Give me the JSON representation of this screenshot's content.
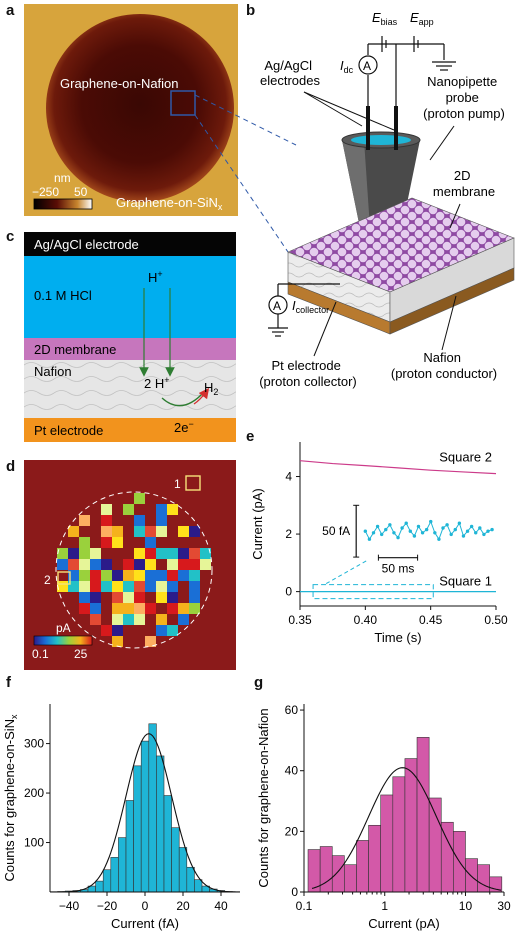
{
  "panels": {
    "a": {
      "letter": "a",
      "label_top": "Graphene-on-Nafion",
      "label_bottom": "Graphene-on-SiN",
      "label_bottom_sub": "x",
      "colorbar_unit": "nm",
      "colorbar_min": "−250",
      "colorbar_max": "50",
      "colors": {
        "background": "#d7a43c",
        "disk": "#4b0b05",
        "disk_edge": "#7a2a10",
        "box": "#2f59a8"
      }
    },
    "b": {
      "letter": "b",
      "e_bias": "E",
      "e_bias_sub": "bias",
      "e_app": "E",
      "e_app_sub": "app",
      "i_dc": "I",
      "i_dc_sub": "dc",
      "ammeter": "A",
      "electrodes_label": [
        "Ag/AgCl",
        "electrodes"
      ],
      "probe_label": [
        "Nanopipette",
        "probe",
        "(proton pump)"
      ],
      "membrane_label": [
        "2D",
        "membrane"
      ],
      "collector_current": "I",
      "collector_current_sub": "collector",
      "pt_label": [
        "Pt electrode",
        "(proton collector)"
      ],
      "nafion_label": [
        "Nafion",
        "(proton conductor)"
      ]
    },
    "c": {
      "letter": "c",
      "layers": [
        {
          "label": "Ag/AgCl electrode",
          "color": "#050505",
          "text_color": "#ffffff"
        },
        {
          "label": "0.1 M HCl",
          "color": "#00aeef",
          "text_color": "#111111"
        },
        {
          "label": "2D membrane",
          "color": "#c676bd",
          "text_color": "#111111"
        },
        {
          "label": "Nafion",
          "color": "#e6e6e6",
          "text_color": "#111111"
        },
        {
          "label": "Pt electrode",
          "color": "#f2931d",
          "text_color": "#111111"
        }
      ],
      "proton": "H",
      "proton_sup": "+",
      "two_protons": "2 H",
      "two_protons_sup": "+",
      "hydrogen": "H",
      "hydrogen_sub": "2",
      "electrons": "2e",
      "electrons_sup": "−"
    },
    "d": {
      "letter": "d",
      "square1": "1",
      "square2": "2",
      "colorbar_unit": "pA",
      "colorbar_min": "0.1",
      "colorbar_max": "25",
      "background": "#8b1a1a"
    },
    "e": {
      "letter": "e",
      "ylabel": "Current (pA)",
      "xlabel": "Time (s)",
      "square2_label": "Square 2",
      "square1_label": "Square 1",
      "scale_y": "50 fA",
      "scale_x": "50 ms"
    },
    "f": {
      "letter": "f"
    },
    "g": {
      "letter": "g"
    }
  },
  "chart_data": [
    {
      "id": "e",
      "type": "line",
      "xlabel": "Time (s)",
      "ylabel": "Current (pA)",
      "xlim": [
        0.35,
        0.5
      ],
      "ylim": [
        -0.5,
        5.2
      ],
      "xticks": [
        "0.35",
        "0.40",
        "0.45",
        "0.50"
      ],
      "yticks": [
        "0",
        "2",
        "4"
      ],
      "series": [
        {
          "name": "Square 2",
          "color": "#cc3b8a",
          "x": [
            0.35,
            0.375,
            0.4,
            0.425,
            0.45,
            0.475,
            0.5
          ],
          "y": [
            4.55,
            4.45,
            4.38,
            4.3,
            4.22,
            4.16,
            4.1
          ]
        },
        {
          "name": "Square 1",
          "color": "#1fb5d6",
          "x": [
            0.35,
            0.5
          ],
          "y": [
            0.0,
            0.0
          ]
        }
      ],
      "inset_trace": [
        2.1,
        1.6,
        2.0,
        2.4,
        1.9,
        2.2,
        2.5,
        2.0,
        1.7,
        2.3,
        2.6,
        2.1,
        1.8,
        2.4,
        2.0,
        2.2,
        2.7,
        2.0,
        1.6,
        2.3,
        2.5,
        1.9,
        2.2,
        2.6,
        1.8,
        2.1,
        2.4,
        2.0,
        2.3,
        1.9,
        2.1,
        2.2
      ],
      "inset_color": "#1fb5d6"
    },
    {
      "id": "f",
      "type": "bar",
      "xlabel": "Current (fA)",
      "ylabel": "Counts for graphene-on-SiN",
      "ylabel_sub": "x",
      "xlim": [
        -50,
        50
      ],
      "ylim": [
        0,
        380
      ],
      "xticks": [
        "-40",
        "-20",
        "0",
        "20",
        "40"
      ],
      "yticks": [
        "100",
        "200",
        "300"
      ],
      "bin_width": 4,
      "bin_centers": [
        -44,
        -40,
        -36,
        -32,
        -28,
        -24,
        -20,
        -16,
        -12,
        -8,
        -4,
        0,
        4,
        8,
        12,
        16,
        20,
        24,
        28,
        32,
        36,
        40,
        44
      ],
      "values": [
        1,
        2,
        3,
        5,
        12,
        22,
        45,
        70,
        110,
        185,
        255,
        305,
        340,
        275,
        195,
        130,
        90,
        50,
        25,
        12,
        6,
        3,
        1
      ],
      "fit": "gaussian",
      "fit_mean": 2,
      "fit_sigma": 12,
      "fit_peak": 320,
      "bar_color": "#1fb5d6"
    },
    {
      "id": "g",
      "type": "bar",
      "xlabel": "Current (pA)",
      "ylabel": "Counts for graphene-on-Nafion",
      "xscale": "log",
      "xlim": [
        0.1,
        30
      ],
      "ylim": [
        0,
        62
      ],
      "xticks": [
        "0.1",
        "1",
        "10",
        "30"
      ],
      "yticks": [
        "0",
        "20",
        "40",
        "60"
      ],
      "bin_edges_log10": [
        -0.95,
        -0.8,
        -0.65,
        -0.5,
        -0.35,
        -0.2,
        -0.05,
        0.1,
        0.25,
        0.4,
        0.55,
        0.7,
        0.85,
        1.0,
        1.15,
        1.3,
        1.45
      ],
      "values": [
        14,
        15,
        12,
        9,
        17,
        22,
        32,
        38,
        44,
        51,
        31,
        23,
        20,
        11,
        9,
        5
      ],
      "fit": "gaussian-log",
      "fit_mean_log10": 0.22,
      "fit_sigma_log10": 0.42,
      "fit_peak": 41,
      "bar_color": "#d359a8"
    }
  ]
}
